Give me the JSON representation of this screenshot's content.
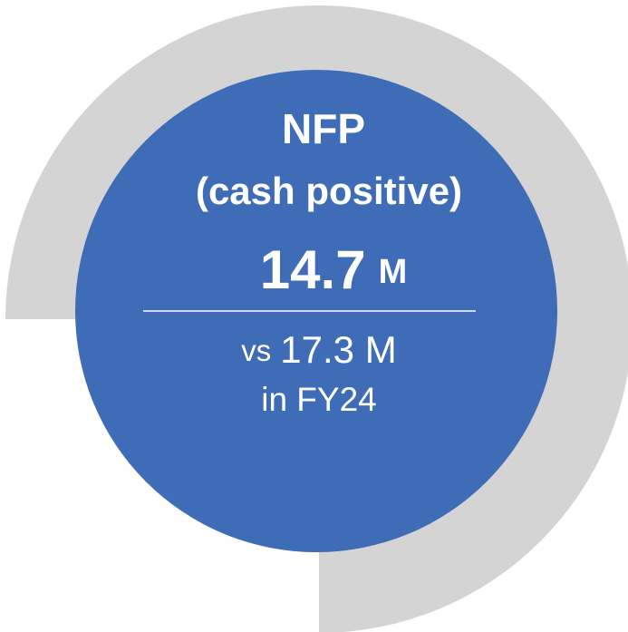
{
  "kpi": {
    "title": "NFP",
    "subtitle": "(cash positive)",
    "value": "14.7",
    "unit": "M",
    "comparison_prefix": "vs",
    "comparison_value": "17.3 M",
    "comparison_period": "in FY24"
  }
}
